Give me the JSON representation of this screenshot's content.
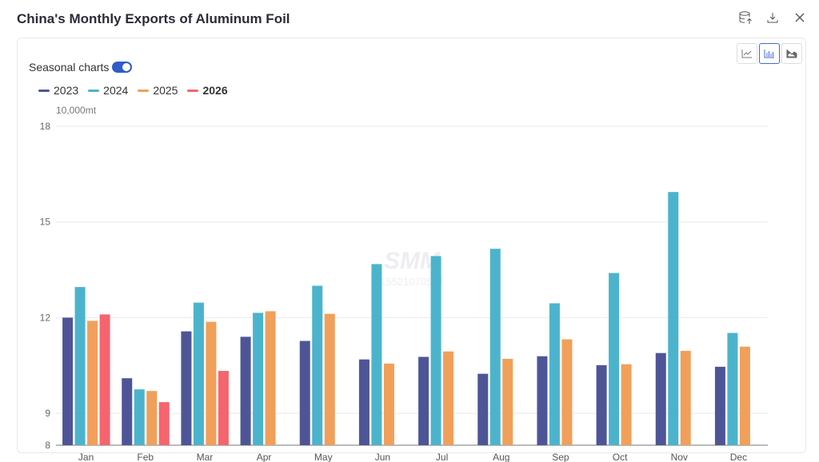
{
  "title": "China's Monthly Exports of Aluminum Foil",
  "toolbar": {
    "icons": [
      "database-upload-icon",
      "download-icon",
      "close-icon"
    ]
  },
  "chart_types": [
    "line-chart-icon",
    "bar-chart-icon",
    "area-chart-icon"
  ],
  "seasonal_label": "Seasonal charts",
  "seasonal_on": true,
  "watermark": {
    "logo": "SMM",
    "number": "15521070527"
  },
  "chart_data": {
    "type": "bar",
    "title": "China's Monthly Exports of Aluminum Foil",
    "ylabel": "10,000mt",
    "ylim": [
      8,
      18
    ],
    "yticks": [
      8,
      9,
      12,
      15,
      18
    ],
    "grid": true,
    "legend_position": "top-left",
    "categories": [
      "Jan",
      "Feb",
      "Mar",
      "Apr",
      "May",
      "Jun",
      "Jul",
      "Aug",
      "Sep",
      "Oct",
      "Nov",
      "Dec"
    ],
    "series": [
      {
        "name": "2023",
        "color": "#4e5597",
        "values": [
          12.0,
          10.1,
          11.57,
          11.4,
          11.27,
          10.69,
          10.77,
          10.24,
          10.79,
          10.51,
          10.89,
          10.46
        ]
      },
      {
        "name": "2024",
        "color": "#4bb4cc",
        "values": [
          12.96,
          9.75,
          12.47,
          12.15,
          13.0,
          13.68,
          13.93,
          14.16,
          12.45,
          13.4,
          15.94,
          11.52
        ]
      },
      {
        "name": "2025",
        "color": "#f0a05a",
        "values": [
          11.9,
          9.7,
          11.87,
          12.2,
          12.12,
          10.56,
          10.94,
          10.71,
          11.32,
          10.54,
          10.96,
          11.09
        ]
      },
      {
        "name": "2026",
        "color": "#f5646f",
        "values": [
          12.1,
          9.35,
          10.33,
          null,
          null,
          null,
          null,
          null,
          null,
          null,
          null,
          null
        ]
      }
    ]
  }
}
